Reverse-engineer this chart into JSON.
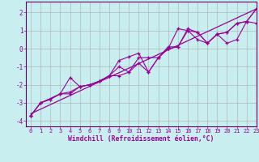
{
  "xlabel": "Windchill (Refroidissement éolien,°C)",
  "background_color": "#c8eef0",
  "line_color": "#990099",
  "xlim": [
    -0.5,
    23
  ],
  "ylim": [
    -4.3,
    2.6
  ],
  "xticks": [
    0,
    1,
    2,
    3,
    4,
    5,
    6,
    7,
    8,
    9,
    10,
    11,
    12,
    13,
    14,
    15,
    16,
    17,
    18,
    19,
    20,
    21,
    22,
    23
  ],
  "yticks": [
    -4,
    -3,
    -2,
    -1,
    0,
    1,
    2
  ],
  "series1_x": [
    0,
    1,
    2,
    3,
    4,
    5,
    6,
    7,
    8,
    9,
    10,
    11,
    12,
    13,
    14,
    15,
    16,
    17,
    18,
    19,
    20,
    21,
    22,
    23
  ],
  "series1_y": [
    -3.7,
    -3.0,
    -2.8,
    -2.5,
    -2.4,
    -2.1,
    -2.0,
    -1.8,
    -1.5,
    -0.65,
    -0.45,
    -0.25,
    -1.3,
    -0.5,
    0.0,
    0.1,
    1.1,
    0.9,
    0.3,
    0.8,
    0.9,
    1.4,
    1.5,
    2.2
  ],
  "series2_x": [
    0,
    1,
    2,
    3,
    4,
    5,
    6,
    7,
    8,
    9,
    10,
    11,
    12,
    13,
    14,
    15,
    16,
    17,
    18,
    19,
    20,
    21,
    22,
    23
  ],
  "series2_y": [
    -3.7,
    -3.0,
    -2.8,
    -2.5,
    -1.6,
    -2.1,
    -2.0,
    -1.8,
    -1.5,
    -1.5,
    -1.3,
    -0.8,
    -1.3,
    -0.5,
    0.0,
    1.1,
    1.0,
    0.5,
    0.3,
    0.8,
    0.3,
    0.5,
    1.5,
    1.4
  ],
  "series3_x": [
    0,
    1,
    3,
    4,
    5,
    6,
    7,
    8,
    9,
    10,
    11,
    12,
    13,
    14,
    15,
    16,
    17,
    18,
    19,
    20,
    21,
    22,
    23
  ],
  "series3_y": [
    -3.7,
    -3.0,
    -2.5,
    -2.5,
    -2.1,
    -2.0,
    -1.8,
    -1.5,
    -1.0,
    -1.3,
    -0.5,
    -0.5,
    -0.5,
    0.1,
    0.1,
    1.0,
    0.9,
    0.3,
    0.8,
    0.9,
    1.4,
    1.5,
    2.2
  ],
  "trend_x": [
    0,
    23
  ],
  "trend_y": [
    -3.6,
    2.2
  ]
}
